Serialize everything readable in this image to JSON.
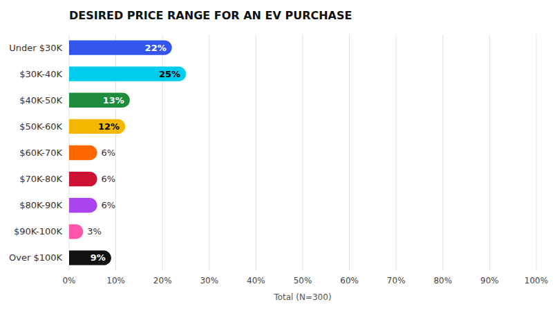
{
  "chart_data": {
    "type": "bar",
    "orientation": "horizontal",
    "title": "DESIRED PRICE RANGE FOR AN EV PURCHASE",
    "categories": [
      "Under $30K",
      "$30K-40K",
      "$40K-50K",
      "$50K-60K",
      "$60K-70K",
      "$70K-80K",
      "$80K-90K",
      "$90K-100K",
      "Over $100K"
    ],
    "values": [
      22,
      25,
      13,
      12,
      6,
      6,
      6,
      3,
      9
    ],
    "value_labels": [
      "22%",
      "25%",
      "13%",
      "12%",
      "6%",
      "6%",
      "6%",
      "3%",
      "9%"
    ],
    "colors": [
      "#3355ee",
      "#00ccee",
      "#1e8c3a",
      "#f5b800",
      "#ff6600",
      "#cc1133",
      "#aa44ee",
      "#ff55aa",
      "#111111"
    ],
    "xlabel": "Total (N=300)",
    "xlim": [
      0,
      100
    ],
    "xticks": [
      {
        "value": 0,
        "label": "0%"
      },
      {
        "value": 10,
        "label": "10%"
      },
      {
        "value": 20,
        "label": "20%"
      },
      {
        "value": 30,
        "label": "30%"
      },
      {
        "value": 40,
        "label": "40%"
      },
      {
        "value": 50,
        "label": "50%"
      },
      {
        "value": 60,
        "label": "60%"
      },
      {
        "value": 70,
        "label": "70%"
      },
      {
        "value": 80,
        "label": "80%"
      },
      {
        "value": 90,
        "label": "90%"
      },
      {
        "value": 100,
        "label": "100%"
      }
    ],
    "grid": true,
    "data_labels": true
  }
}
